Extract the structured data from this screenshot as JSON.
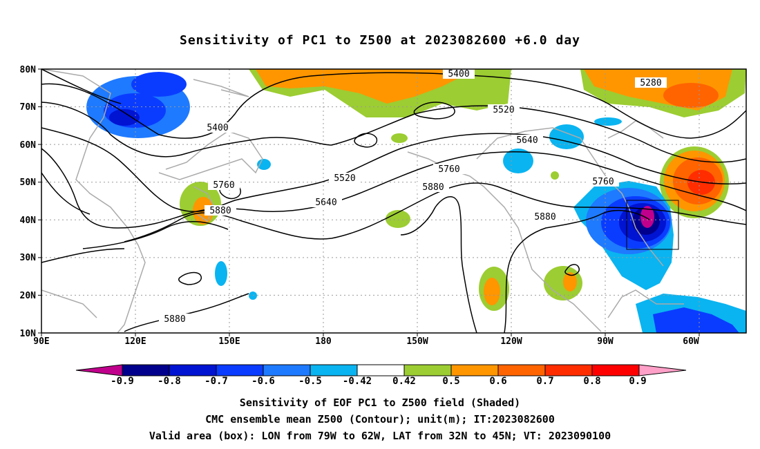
{
  "title": "Sensitivity of PC1 to Z500 at 2023082600 +6.0 day",
  "axes": {
    "lat_labels": [
      "80N",
      "70N",
      "60N",
      "50N",
      "40N",
      "30N",
      "20N",
      "10N"
    ],
    "lon_labels": [
      "90E",
      "120E",
      "150E",
      "180",
      "150W",
      "120W",
      "90W",
      "60W"
    ]
  },
  "contour_labels": [
    "5400",
    "5280",
    "5520",
    "5400",
    "5640",
    "5520",
    "5760",
    "5760",
    "5880",
    "5640",
    "5880",
    "5760",
    "5880",
    "5880"
  ],
  "valid_box": {
    "lon_from": "79W",
    "lon_to": "62W",
    "lat_from": "32N",
    "lat_to": "45N"
  },
  "colorbar": {
    "labels": [
      "-0.9",
      "-0.8",
      "-0.7",
      "-0.6",
      "-0.5",
      "-0.42",
      "0.42",
      "0.5",
      "0.6",
      "0.7",
      "0.8",
      "0.9"
    ],
    "colors": [
      "#c0008c",
      "#00008c",
      "#0014d2",
      "#0a3cff",
      "#1e7aff",
      "#0ab4f0",
      "#00d2ff",
      "#ffffff",
      "#9ccd32",
      "#ff9600",
      "#ff6400",
      "#ff2d00",
      "#ff0000",
      "#ffa0c8"
    ]
  },
  "captions": {
    "line1": "Sensitivity of EOF PC1 to Z500 field (Shaded)",
    "line2": "CMC ensemble mean Z500 (Contour); unit(m); IT:2023082600",
    "line3": "Valid area (box): LON from 79W to 62W, LAT from 32N to 45N; VT: 2023090100"
  }
}
